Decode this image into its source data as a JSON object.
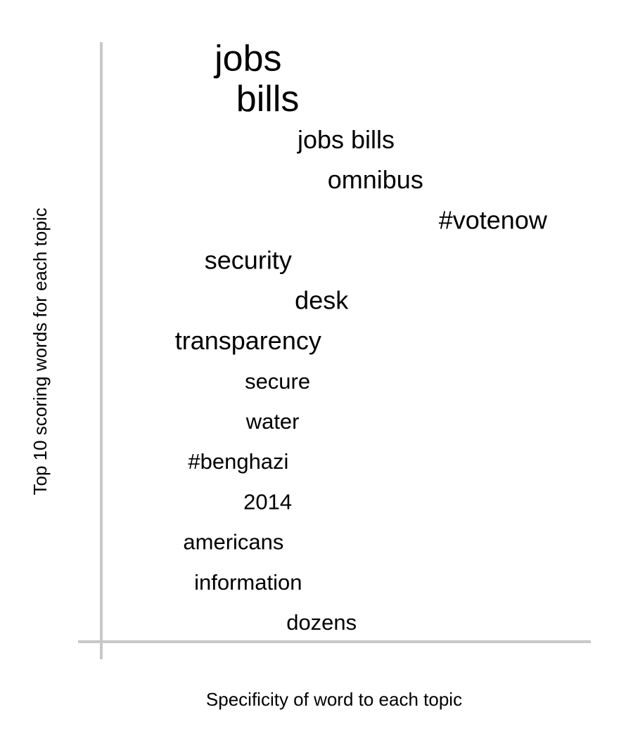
{
  "chart_data": {
    "type": "scatter",
    "title": "",
    "xlabel": "Specificity of word to each topic",
    "ylabel": "Top 10 scoring words for each topic",
    "grid": false,
    "legend": "none",
    "words": [
      {
        "text": "jobs",
        "x": 0.3,
        "rank": 1,
        "size": 3
      },
      {
        "text": "bills",
        "x": 0.34,
        "rank": 2,
        "size": 3
      },
      {
        "text": "jobs bills",
        "x": 0.5,
        "rank": 3,
        "size": 2
      },
      {
        "text": "omnibus",
        "x": 0.56,
        "rank": 4,
        "size": 2
      },
      {
        "text": "#votenow",
        "x": 0.8,
        "rank": 5,
        "size": 2
      },
      {
        "text": "security",
        "x": 0.3,
        "rank": 6,
        "size": 2
      },
      {
        "text": "desk",
        "x": 0.45,
        "rank": 7,
        "size": 2
      },
      {
        "text": "transparency",
        "x": 0.3,
        "rank": 8,
        "size": 2
      },
      {
        "text": "secure",
        "x": 0.36,
        "rank": 9,
        "size": 1
      },
      {
        "text": "water",
        "x": 0.35,
        "rank": 10,
        "size": 1
      },
      {
        "text": "#benghazi",
        "x": 0.28,
        "rank": 11,
        "size": 1
      },
      {
        "text": "2014",
        "x": 0.34,
        "rank": 12,
        "size": 1
      },
      {
        "text": "americans",
        "x": 0.27,
        "rank": 13,
        "size": 1
      },
      {
        "text": "information",
        "x": 0.3,
        "rank": 14,
        "size": 1
      },
      {
        "text": "dozens",
        "x": 0.45,
        "rank": 15,
        "size": 1
      }
    ]
  }
}
